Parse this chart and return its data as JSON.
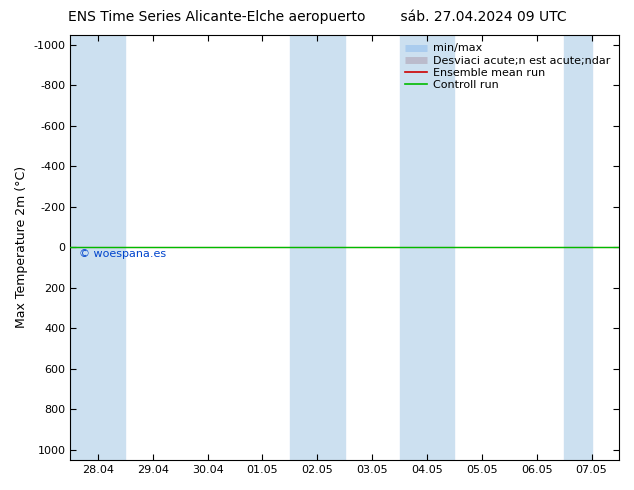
{
  "title_left": "ENS Time Series Alicante-Elche aeropuerto",
  "title_right": "sáb. 27.04.2024 09 UTC",
  "ylabel": "Max Temperature 2m (°C)",
  "yticks": [
    -1000,
    -800,
    -600,
    -400,
    -200,
    0,
    200,
    400,
    600,
    800,
    1000
  ],
  "ylim_top": -1050,
  "ylim_bottom": 1050,
  "xtick_labels": [
    "28.04",
    "29.04",
    "30.04",
    "01.05",
    "02.05",
    "03.05",
    "04.05",
    "05.05",
    "06.05",
    "07.05"
  ],
  "xtick_positions": [
    0,
    1,
    2,
    3,
    4,
    5,
    6,
    7,
    8,
    9
  ],
  "shaded_spans": [
    [
      0,
      1
    ],
    [
      4,
      5
    ],
    [
      6,
      7
    ],
    [
      9,
      9.5
    ]
  ],
  "shaded_color": "#cce0f0",
  "green_line_y": 0,
  "green_line_color": "#00bb00",
  "red_line_y": 0,
  "red_line_color": "#cc0000",
  "minmax_line_color": "#aaccee",
  "std_line_color": "#bbbbcc",
  "watermark": "© woespana.es",
  "watermark_color": "#0044cc",
  "bg_color": "#ffffff",
  "legend_labels": [
    "min/max",
    "Desviaci acute;n est acute;ndar",
    "Ensemble mean run",
    "Controll run"
  ],
  "legend_colors_line": [
    "#aaccee",
    "#bbbbcc",
    "#cc0000",
    "#00bb00"
  ],
  "font_size_title": 10,
  "font_size_axis": 9,
  "font_size_ticks": 8,
  "font_size_legend": 8
}
